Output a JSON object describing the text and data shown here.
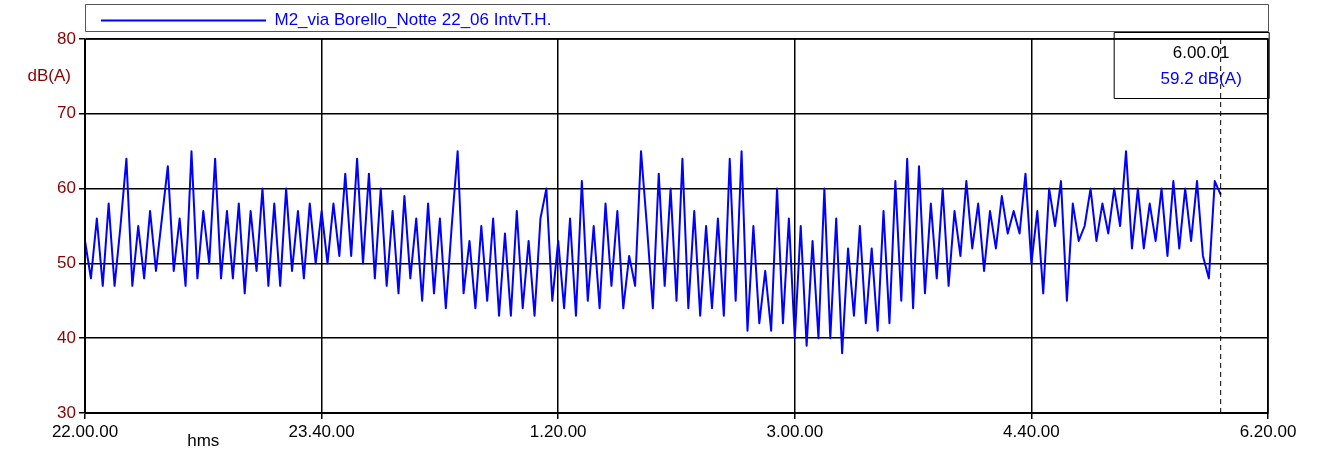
{
  "chart_data": {
    "type": "line",
    "xlabel": "hms",
    "ylabel": "dB(A)",
    "categories": [
      "22.00.00",
      null,
      null,
      null,
      null,
      null,
      null,
      null,
      null,
      null,
      null,
      null,
      null,
      null,
      null,
      null,
      null,
      null,
      null,
      null,
      null,
      null,
      null,
      null,
      null,
      null,
      null,
      null,
      null,
      null,
      null,
      null,
      null,
      null,
      null,
      null,
      null,
      null,
      null,
      null,
      "23.40.00",
      null,
      null,
      null,
      null,
      null,
      null,
      null,
      null,
      null,
      null,
      null,
      null,
      null,
      null,
      null,
      null,
      null,
      null,
      null,
      null,
      null,
      null,
      null,
      null,
      null,
      null,
      null,
      null,
      null,
      null,
      null,
      null,
      null,
      null,
      null,
      null,
      null,
      null,
      null,
      "1.20.00",
      null,
      null,
      null,
      null,
      null,
      null,
      null,
      null,
      null,
      null,
      null,
      null,
      null,
      null,
      null,
      null,
      null,
      null,
      null,
      null,
      null,
      null,
      null,
      null,
      null,
      null,
      null,
      null,
      null,
      null,
      null,
      null,
      null,
      null,
      null,
      null,
      null,
      null,
      null,
      "3.00.00",
      null,
      null,
      null,
      null,
      null,
      null,
      null,
      null,
      null,
      null,
      null,
      null,
      null,
      null,
      null,
      null,
      null,
      null,
      null,
      null,
      null,
      null,
      null,
      null,
      null,
      null,
      null,
      null,
      null,
      null,
      null,
      null,
      null,
      null,
      null,
      null,
      null,
      null,
      null,
      "4.40.00",
      null,
      null,
      null,
      null,
      null,
      null,
      null,
      null,
      null,
      null,
      null,
      null,
      null,
      null,
      null,
      null,
      null,
      null,
      null,
      null,
      null,
      null,
      null,
      null,
      null,
      null,
      null,
      null,
      null,
      null,
      null,
      null,
      null,
      null,
      null,
      null,
      null,
      null,
      null,
      "6.20.00"
    ],
    "ylim": [
      30,
      80
    ],
    "yticks": [
      30,
      40,
      50,
      60,
      70,
      80
    ],
    "grid": true,
    "legend": "top",
    "annotations": [
      "6.00.01",
      "59.2 dB(A)"
    ],
    "series": [
      {
        "name": "M2_via Borello_Notte 22_06 IntvT.H.",
        "color": "#0000ff",
        "values": [
          53,
          48,
          56,
          47,
          58,
          47,
          55,
          64,
          47,
          55,
          48,
          57,
          49,
          56,
          63,
          49,
          56,
          47,
          65,
          48,
          57,
          50,
          64,
          48,
          57,
          48,
          58,
          46,
          57,
          49,
          60,
          47,
          58,
          47,
          60,
          49,
          57,
          48,
          58,
          50,
          57,
          50,
          58,
          51,
          62,
          51,
          64,
          50,
          62,
          48,
          60,
          47,
          57,
          46,
          59,
          48,
          56,
          45,
          58,
          46,
          56,
          44,
          55,
          65,
          46,
          53,
          44,
          55,
          45,
          56,
          43,
          54,
          43,
          57,
          44,
          53,
          43,
          56,
          60,
          45,
          53,
          44,
          56,
          43,
          61,
          45,
          55,
          44,
          58,
          47,
          57,
          44,
          51,
          47,
          65,
          55,
          44,
          62,
          47,
          60,
          45,
          64,
          44,
          57,
          43,
          55,
          44,
          56,
          43,
          64,
          45,
          65,
          41,
          55,
          42,
          49,
          41,
          60,
          42,
          56,
          40,
          55,
          39,
          53,
          40,
          60,
          40,
          56,
          38,
          52,
          43,
          55,
          42,
          52,
          41,
          57,
          42,
          61,
          45,
          64,
          44,
          63,
          46,
          58,
          48,
          60,
          47,
          57,
          51,
          61,
          52,
          58,
          49,
          57,
          52,
          59,
          54,
          57,
          54,
          62,
          50,
          57,
          46,
          60,
          55,
          61,
          45,
          58,
          53,
          55,
          60,
          53,
          58,
          54,
          60,
          55,
          65,
          52,
          60,
          52,
          58,
          53,
          60,
          51,
          61,
          52,
          60,
          53,
          61,
          51,
          48,
          61,
          59.2,
          null,
          null,
          null,
          null,
          null,
          null,
          null,
          null
        ]
      }
    ]
  }
}
